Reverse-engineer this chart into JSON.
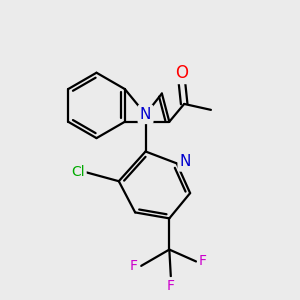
{
  "background_color": "#ebebeb",
  "atom_colors": {
    "O": "#ff0000",
    "N": "#0000cd",
    "Cl": "#00aa00",
    "F": "#cc00cc",
    "C": "#000000"
  },
  "line_color": "#000000",
  "line_width": 1.6,
  "font_size": 10
}
